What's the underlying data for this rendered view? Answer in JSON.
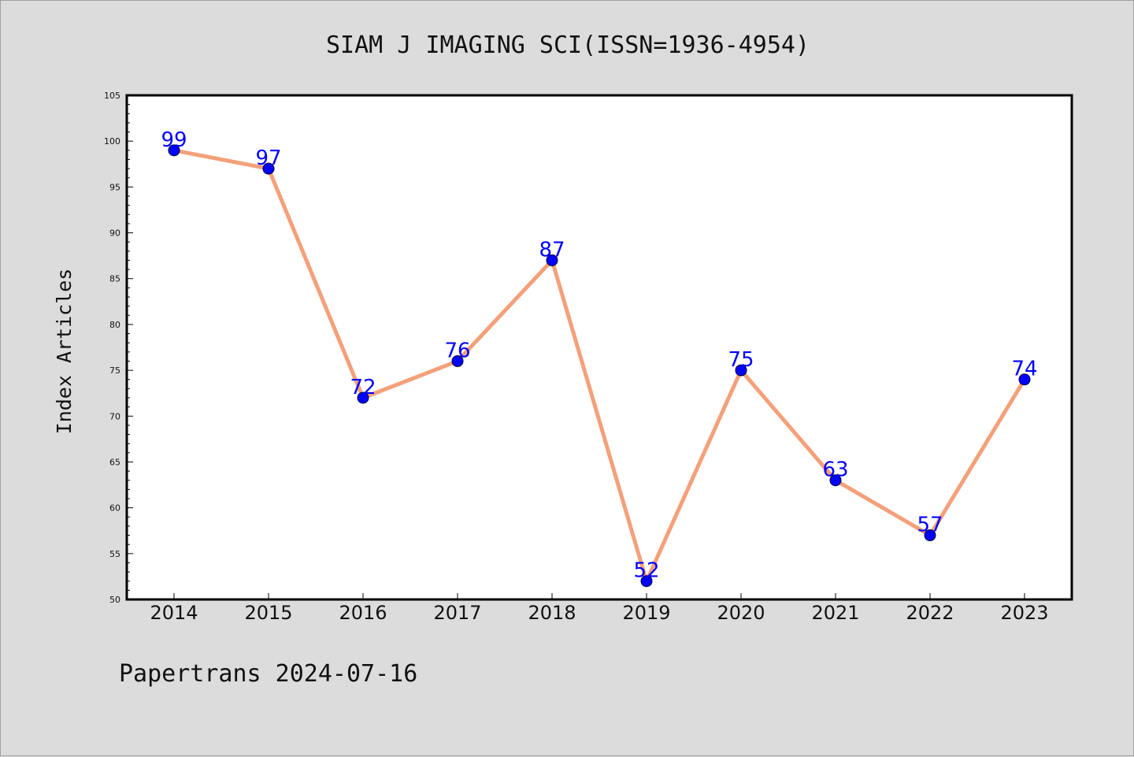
{
  "page": {
    "footer": "Papertrans 2024-07-16"
  },
  "chart_data": {
    "type": "line",
    "title": "SIAM J IMAGING SCI(ISSN=1936-4954)",
    "xlabel": "",
    "ylabel": "Index Articles",
    "categories": [
      "2014",
      "2015",
      "2016",
      "2017",
      "2018",
      "2019",
      "2020",
      "2021",
      "2022",
      "2023"
    ],
    "series": [
      {
        "values": [
          99,
          97,
          72,
          76,
          87,
          52,
          75,
          63,
          57,
          74
        ]
      }
    ],
    "ylim": [
      50,
      105
    ],
    "yticks": [
      50,
      55,
      60,
      65,
      70,
      75,
      80,
      85,
      90,
      95,
      100,
      105
    ],
    "grid": false,
    "legend": "none",
    "colors": {
      "line": "#f4a07a",
      "marker": "#0000ff",
      "data_label": "#0000ff",
      "plot_background": "#ffffff",
      "page_background": "#dcdcdc"
    }
  }
}
